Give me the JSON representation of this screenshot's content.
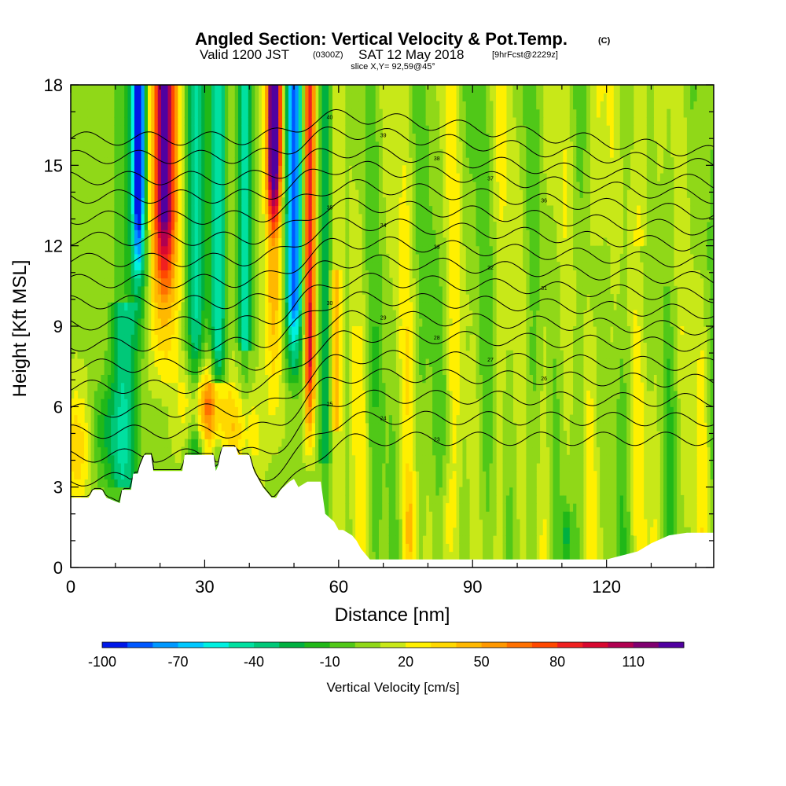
{
  "header": {
    "title": "Angled Section: Vertical Velocity & Pot.Temp.",
    "title_units": "(C)",
    "valid_prefix": "Valid 1200 JST",
    "valid_utc": "(0300Z)",
    "valid_date": "SAT 12 May 2018",
    "forecast": "[9hrFcst@2229z]",
    "slice": "slice X,Y= 92,59@45°"
  },
  "chart_data": {
    "type": "heatmap",
    "title": "Angled Section: Vertical Velocity & Pot.Temp.",
    "xlabel": "Distance [nm]",
    "ylabel": "Height [Kft MSL]",
    "xlim": [
      0,
      144
    ],
    "ylim": [
      0,
      18
    ],
    "x_ticks": [
      "0",
      "30",
      "60",
      "90",
      "120"
    ],
    "x_tick_values": [
      0,
      30,
      60,
      90,
      120
    ],
    "y_ticks": [
      "0",
      "3",
      "6",
      "9",
      "12",
      "15",
      "18"
    ],
    "y_tick_values": [
      0,
      3,
      6,
      9,
      12,
      15,
      18
    ],
    "fill_variable": "Vertical Velocity [cm/s]",
    "contour_variable": "Potential Temperature (C)",
    "colorbar": {
      "title": "Vertical Velocity [cm/s]",
      "labels": [
        "-100",
        "-70",
        "-40",
        "-10",
        "20",
        "50",
        "80",
        "110"
      ],
      "label_values": [
        -100,
        -70,
        -40,
        -10,
        20,
        50,
        80,
        110
      ],
      "levels": [
        -100,
        -90,
        -80,
        -70,
        -60,
        -50,
        -40,
        -30,
        -20,
        -10,
        0,
        10,
        20,
        30,
        40,
        50,
        60,
        70,
        80,
        90,
        100,
        110,
        120
      ],
      "colors": [
        "#0018e8",
        "#0058ff",
        "#0098ff",
        "#00c8ff",
        "#00f0e0",
        "#00e0a0",
        "#00c878",
        "#00b040",
        "#20b818",
        "#50c818",
        "#90d818",
        "#c8e818",
        "#fff000",
        "#ffd800",
        "#ffb800",
        "#ff9800",
        "#ff7000",
        "#ff4800",
        "#f02020",
        "#d80830",
        "#b00050",
        "#800070",
        "#5000a0"
      ]
    },
    "terrain_profile": [
      [
        0,
        2.6
      ],
      [
        4,
        2.6
      ],
      [
        5,
        2.9
      ],
      [
        7,
        2.9
      ],
      [
        8,
        2.6
      ],
      [
        11,
        2.4
      ],
      [
        11.5,
        2.9
      ],
      [
        13.5,
        2.9
      ],
      [
        14,
        3.5
      ],
      [
        15,
        3.5
      ],
      [
        15.5,
        3.8
      ],
      [
        16.5,
        4.2
      ],
      [
        18,
        4.2
      ],
      [
        18.5,
        3.6
      ],
      [
        25,
        3.6
      ],
      [
        25.5,
        4.2
      ],
      [
        32,
        4.2
      ],
      [
        32.5,
        3.6
      ],
      [
        33,
        3.8
      ],
      [
        33.5,
        4.2
      ],
      [
        34,
        4.5
      ],
      [
        37,
        4.5
      ],
      [
        37.5,
        4.2
      ],
      [
        40,
        4.2
      ],
      [
        41,
        3.6
      ],
      [
        42,
        3.3
      ],
      [
        43,
        3.0
      ],
      [
        45,
        2.6
      ],
      [
        46,
        2.6
      ],
      [
        47,
        2.9
      ],
      [
        49,
        3.2
      ],
      [
        50,
        3.3
      ],
      [
        51,
        3.0
      ],
      [
        53,
        3.2
      ],
      [
        56,
        3.2
      ],
      [
        57,
        2.0
      ],
      [
        59,
        1.7
      ],
      [
        60,
        1.4
      ],
      [
        61,
        1.4
      ],
      [
        63,
        1.2
      ],
      [
        64,
        1.0
      ],
      [
        65,
        0.7
      ],
      [
        66,
        0.5
      ],
      [
        67,
        0.3
      ],
      [
        76,
        0.3
      ],
      [
        90,
        0.3
      ],
      [
        120,
        0.3
      ],
      [
        127,
        0.6
      ],
      [
        130,
        0.9
      ],
      [
        134,
        1.2
      ],
      [
        138,
        1.3
      ],
      [
        144,
        1.3
      ]
    ],
    "theta_contours": [
      {
        "base": 0.0,
        "z_top": 16.9,
        "value": "40"
      },
      {
        "base": 1.0,
        "z_top": 16.3,
        "value": "39"
      },
      {
        "base": 2.0,
        "z_top": 15.6,
        "value": "38"
      },
      {
        "base": 3.0,
        "z_top": 15.0,
        "value": "37"
      },
      {
        "base": 4.0,
        "z_top": 14.3,
        "value": "36"
      },
      {
        "base": 5.0,
        "z_top": 13.6,
        "value": "35"
      },
      {
        "base": 6.0,
        "z_top": 12.9,
        "value": "34"
      },
      {
        "base": 7.0,
        "z_top": 12.2,
        "value": "33"
      },
      {
        "base": 8.0,
        "z_top": 11.5,
        "value": "32"
      },
      {
        "base": 9.0,
        "z_top": 10.8,
        "value": "31"
      },
      {
        "base": 10.0,
        "z_top": 10.1,
        "value": "30"
      },
      {
        "base": 11.0,
        "z_top": 9.4,
        "value": "29"
      },
      {
        "base": 12.0,
        "z_top": 8.7,
        "value": "28"
      },
      {
        "base": 13.0,
        "z_top": 7.9,
        "value": "27"
      },
      {
        "base": 14.0,
        "z_top": 7.2,
        "value": "26"
      },
      {
        "base": 15.0,
        "z_top": 6.4,
        "value": "25"
      },
      {
        "base": 16.0,
        "z_top": 5.6,
        "value": "24"
      },
      {
        "base": 17.0,
        "z_top": 4.8,
        "value": "23"
      }
    ]
  }
}
